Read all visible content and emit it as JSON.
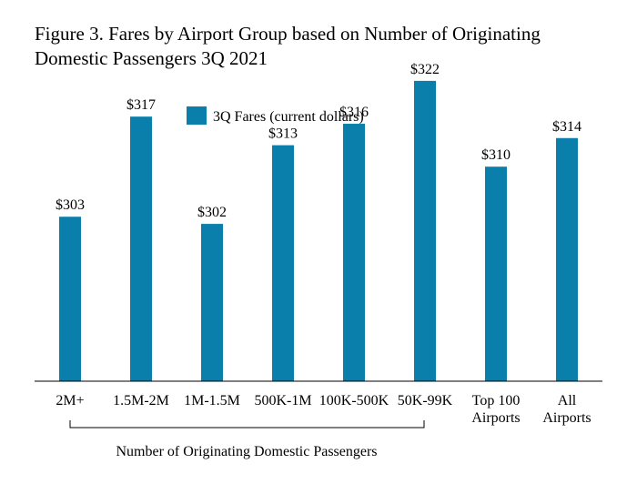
{
  "chart_data": {
    "type": "bar",
    "title_lines": [
      "Figure 3. Fares by Airport Group based on Number of Originating",
      "Domestic Passengers 3Q 2021"
    ],
    "legend": {
      "label": "3Q Fares (current dollars)",
      "position": "top-center"
    },
    "categories": [
      [
        "2M+"
      ],
      [
        "1.5M-2M"
      ],
      [
        "1M-1.5M"
      ],
      [
        "500K-1M"
      ],
      [
        "100K-500K"
      ],
      [
        "50K-99K"
      ],
      [
        "Top 100",
        "Airports"
      ],
      [
        "All",
        "Airports"
      ]
    ],
    "series": [
      {
        "name": "3Q Fares (current dollars)",
        "values": [
          303,
          317,
          302,
          313,
          316,
          322,
          310,
          314
        ],
        "value_labels": [
          "$303",
          "$317",
          "$302",
          "$313",
          "$316",
          "$322",
          "$310",
          "$314"
        ]
      }
    ],
    "bracket_label": "Number of Originating Domestic Passengers",
    "bracket_span": [
      0,
      5
    ],
    "ylim": [
      280,
      325
    ],
    "grid": false,
    "bar_color": "#0B7FAB"
  }
}
